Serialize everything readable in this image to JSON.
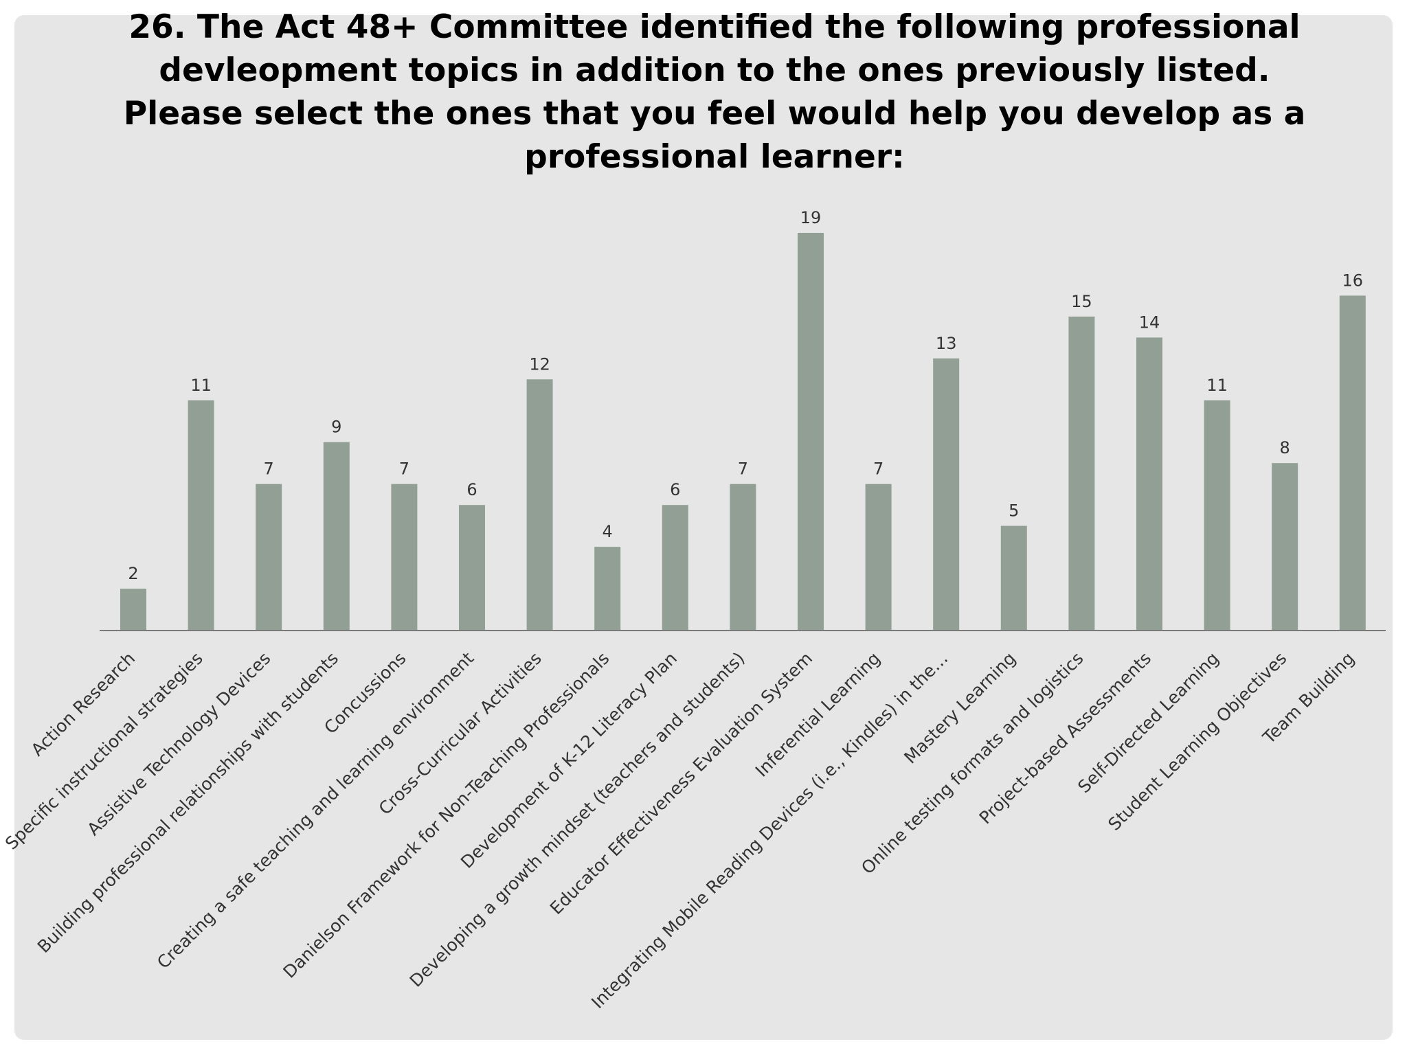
{
  "chart_data": {
    "type": "bar",
    "title_lines": [
      "26. The Act 48+ Committee identified the following professional",
      "devleopment topics in addition to the ones previously listed.",
      "Please select the ones that you feel would help you develop as a",
      "professional learner:"
    ],
    "categories": [
      "Action Research",
      "Specific instructional strategies",
      "Assistive Technology Devices",
      "Building professional relationships with students",
      "Concussions",
      "Creating a safe teaching and learning environment",
      "Cross-Curricular Activities",
      "Danielson Framework for Non-Teaching Professionals",
      "Development of K-12 Literacy Plan",
      "Developing a growth mindset (teachers and students)",
      "Educator Effectiveness Evaluation System",
      "Inferential Learning",
      "Integrating Mobile Reading Devices (i.e., Kindles) in the…",
      "Mastery Learning",
      "Online testing formats and logistics",
      "Project-based Assessments",
      "Self-Directed Learning",
      "Student Learning Objectives",
      "Team Building"
    ],
    "values": [
      2,
      11,
      7,
      9,
      7,
      6,
      12,
      4,
      6,
      7,
      19,
      7,
      13,
      5,
      15,
      14,
      11,
      8,
      16
    ],
    "ylim": [
      0,
      19
    ],
    "grid": false,
    "legend": "none",
    "data_labels": true,
    "colors": {
      "bar": "#919f94",
      "axis": "#7a7a7a",
      "background": "#e6e6e6"
    }
  }
}
